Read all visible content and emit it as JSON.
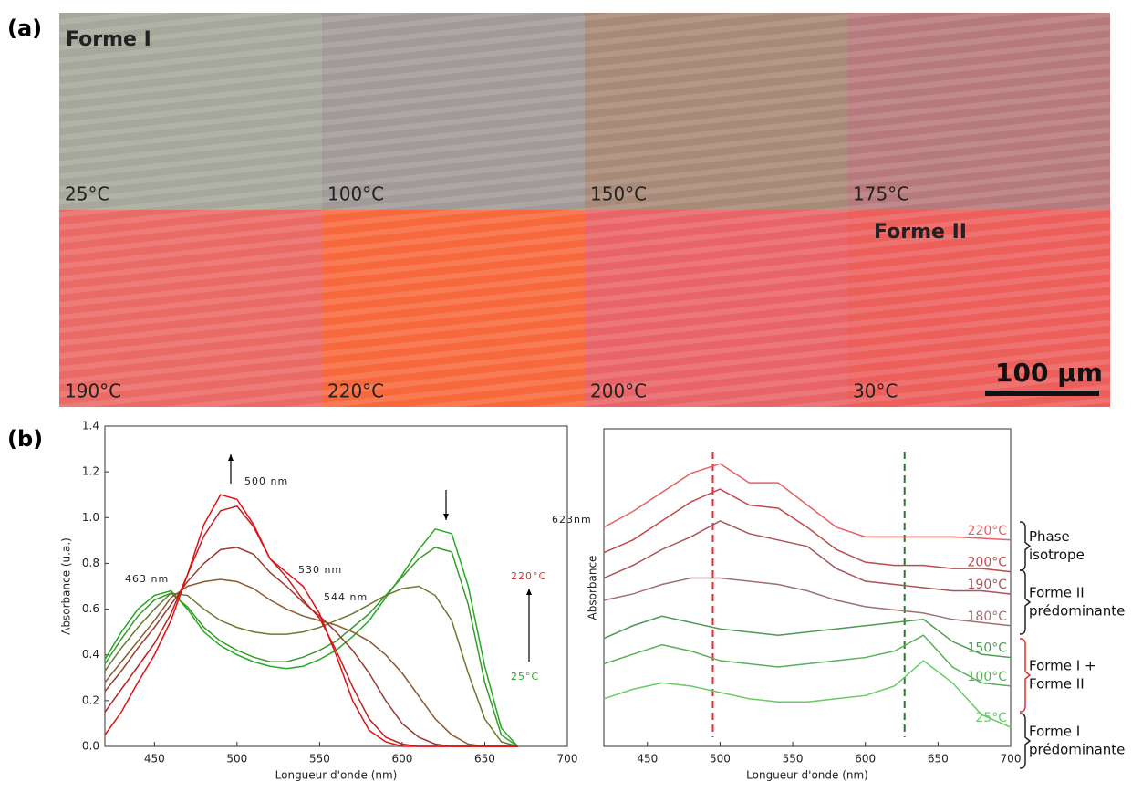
{
  "panel_labels": [
    "(a)",
    "(b)"
  ],
  "micrographs": {
    "tiles": [
      {
        "label": "25°C",
        "color": "#a7a89b"
      },
      {
        "label": "100°C",
        "color": "#a09a98"
      },
      {
        "label": "150°C",
        "color": "#a88a78"
      },
      {
        "label": "175°C",
        "color": "#b77a7c"
      },
      {
        "label": "190°C",
        "color": "#ea6a66"
      },
      {
        "label": "220°C",
        "color": "#f7693c"
      },
      {
        "label": "200°C",
        "color": "#e96468"
      },
      {
        "label": "30°C",
        "color": "#ec5f5b"
      }
    ],
    "annotations": [
      "Forme I",
      "Forme II"
    ],
    "scale_bar": "100 µm"
  },
  "chart_data": [
    {
      "type": "line",
      "x_label": "Longueur d'onde (nm)",
      "y_label": "Absorbance (u.a.)",
      "xlim": [
        420,
        700
      ],
      "xticks": [
        450,
        500,
        550,
        600,
        650,
        700
      ],
      "ylim": [
        0,
        1.4
      ],
      "yticks": [
        {
          "value": 0,
          "label": "0.0"
        },
        0.2,
        0.4,
        0.6,
        0.8,
        {
          "value": 1,
          "label": "1.0"
        },
        1.2,
        1.4
      ],
      "annotations": [
        "500 nm",
        "530 nm",
        "544 nm",
        "463 nm",
        "623nm",
        "220°C",
        "25°C"
      ],
      "x": [
        420,
        430,
        440,
        450,
        460,
        470,
        480,
        490,
        500,
        510,
        520,
        530,
        540,
        550,
        560,
        570,
        580,
        590,
        600,
        610,
        620,
        630,
        640,
        650,
        660,
        670
      ],
      "series": [
        {
          "color": "#22aa22",
          "values": [
            0.38,
            0.5,
            0.6,
            0.66,
            0.68,
            0.6,
            0.5,
            0.44,
            0.4,
            0.37,
            0.35,
            0.34,
            0.35,
            0.38,
            0.42,
            0.48,
            0.55,
            0.65,
            0.75,
            0.86,
            0.95,
            0.93,
            0.7,
            0.35,
            0.08,
            0
          ]
        },
        {
          "color": "#3a9a2a",
          "values": [
            0.36,
            0.47,
            0.57,
            0.64,
            0.67,
            0.61,
            0.52,
            0.46,
            0.42,
            0.39,
            0.37,
            0.37,
            0.39,
            0.42,
            0.46,
            0.52,
            0.58,
            0.66,
            0.74,
            0.82,
            0.87,
            0.85,
            0.62,
            0.28,
            0.05,
            0
          ]
        },
        {
          "color": "#6a7a30",
          "values": [
            0.33,
            0.43,
            0.52,
            0.6,
            0.67,
            0.66,
            0.6,
            0.55,
            0.52,
            0.5,
            0.49,
            0.49,
            0.5,
            0.52,
            0.55,
            0.58,
            0.62,
            0.66,
            0.69,
            0.7,
            0.66,
            0.55,
            0.32,
            0.12,
            0.02,
            0
          ]
        },
        {
          "color": "#8a5a30",
          "values": [
            0.28,
            0.37,
            0.46,
            0.55,
            0.65,
            0.7,
            0.72,
            0.73,
            0.72,
            0.69,
            0.64,
            0.6,
            0.57,
            0.55,
            0.53,
            0.5,
            0.46,
            0.4,
            0.32,
            0.22,
            0.12,
            0.05,
            0.01,
            0,
            0,
            0
          ]
        },
        {
          "color": "#9a3a30",
          "values": [
            0.24,
            0.33,
            0.43,
            0.52,
            0.62,
            0.72,
            0.8,
            0.86,
            0.87,
            0.84,
            0.76,
            0.7,
            0.63,
            0.57,
            0.5,
            0.42,
            0.32,
            0.2,
            0.1,
            0.04,
            0.01,
            0,
            0,
            0,
            0,
            0
          ]
        },
        {
          "color": "#c02020",
          "values": [
            0.15,
            0.25,
            0.35,
            0.45,
            0.58,
            0.75,
            0.92,
            1.03,
            1.05,
            0.96,
            0.82,
            0.74,
            0.64,
            0.56,
            0.42,
            0.26,
            0.12,
            0.04,
            0.01,
            0,
            0,
            0,
            0,
            0,
            0,
            0
          ]
        },
        {
          "color": "#e01010",
          "values": [
            0.05,
            0.15,
            0.28,
            0.4,
            0.55,
            0.75,
            0.97,
            1.1,
            1.08,
            0.97,
            0.82,
            0.76,
            0.7,
            0.58,
            0.4,
            0.2,
            0.07,
            0.02,
            0,
            0,
            0,
            0,
            0,
            0,
            0,
            0
          ]
        }
      ]
    },
    {
      "type": "line",
      "x_label": "Longueur d'onde (nm)",
      "y_label": "Absorbance",
      "xlim": [
        420,
        700
      ],
      "xticks": [
        450,
        500,
        550,
        600,
        650,
        700
      ],
      "ylim": [
        0,
        10
      ],
      "vlines": [
        {
          "x": 495,
          "color": "#e03030"
        },
        {
          "x": 627,
          "color": "#2a7a2a"
        }
      ],
      "brackets": [
        [
          "Phase",
          "isotrope"
        ],
        [
          "Forme II",
          "prédominante"
        ],
        [
          "Forme I +",
          "Forme II"
        ],
        [
          "Forme I",
          "prédominante"
        ]
      ],
      "x": [
        420,
        440,
        460,
        480,
        500,
        520,
        540,
        560,
        580,
        600,
        620,
        640,
        660,
        680,
        700
      ],
      "series": [
        {
          "name": "220°C",
          "color": "#e86060",
          "values": [
            6.9,
            7.4,
            8.0,
            8.6,
            8.9,
            8.3,
            8.3,
            7.6,
            6.9,
            6.6,
            6.6,
            6.6,
            6.6,
            6.55,
            6.5
          ]
        },
        {
          "name": "200°C",
          "color": "#c0494b",
          "values": [
            6.1,
            6.5,
            7.1,
            7.7,
            8.1,
            7.6,
            7.5,
            6.9,
            6.2,
            5.8,
            5.7,
            5.7,
            5.6,
            5.6,
            5.5
          ]
        },
        {
          "name": "190°C",
          "color": "#a8545a",
          "values": [
            5.3,
            5.7,
            6.2,
            6.6,
            7.1,
            6.7,
            6.5,
            6.3,
            5.6,
            5.2,
            5.1,
            5.0,
            4.9,
            4.9,
            4.8
          ]
        },
        {
          "name": "180°C",
          "color": "#a07070",
          "values": [
            4.6,
            4.8,
            5.1,
            5.3,
            5.3,
            5.2,
            5.1,
            4.9,
            4.6,
            4.4,
            4.3,
            4.2,
            4.0,
            3.9,
            3.8
          ]
        },
        {
          "name": "150°C",
          "color": "#4f9950",
          "values": [
            3.4,
            3.8,
            4.1,
            3.9,
            3.7,
            3.6,
            3.5,
            3.6,
            3.7,
            3.8,
            3.9,
            4.0,
            3.3,
            2.9,
            2.8
          ]
        },
        {
          "name": "100°C",
          "color": "#5aaf5a",
          "values": [
            2.6,
            2.9,
            3.2,
            3.0,
            2.7,
            2.6,
            2.5,
            2.6,
            2.7,
            2.8,
            3.0,
            3.5,
            2.5,
            2.0,
            1.9
          ]
        },
        {
          "name": "25°C",
          "color": "#66cc66",
          "values": [
            1.5,
            1.8,
            2.0,
            1.9,
            1.7,
            1.5,
            1.4,
            1.4,
            1.5,
            1.6,
            1.9,
            2.7,
            2.0,
            1.0,
            0.6
          ]
        }
      ]
    }
  ]
}
